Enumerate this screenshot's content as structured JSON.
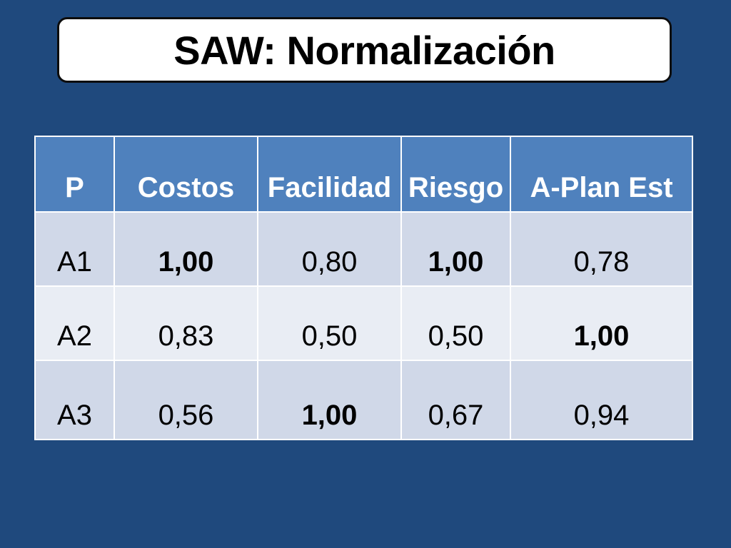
{
  "slide": {
    "title": "SAW: Normalización"
  },
  "table": {
    "headers": [
      "P",
      "Costos",
      "Facilidad",
      "Riesgo",
      "A-Plan Est"
    ],
    "rows": [
      {
        "label": "A1",
        "values": [
          "1,00",
          "0,80",
          "1,00",
          "0,78"
        ],
        "bold": [
          true,
          false,
          true,
          false
        ]
      },
      {
        "label": "A2",
        "values": [
          "0,83",
          "0,50",
          "0,50",
          "1,00"
        ],
        "bold": [
          false,
          false,
          false,
          true
        ]
      },
      {
        "label": "A3",
        "values": [
          "0,56",
          "1,00",
          "0,67",
          "0,94"
        ],
        "bold": [
          false,
          true,
          false,
          false
        ]
      }
    ]
  },
  "colors": {
    "background": "#1f497d",
    "header_fill": "#4f81bd",
    "row_fill_dark": "#d0d8e8",
    "row_fill_light": "#e9edf4"
  }
}
